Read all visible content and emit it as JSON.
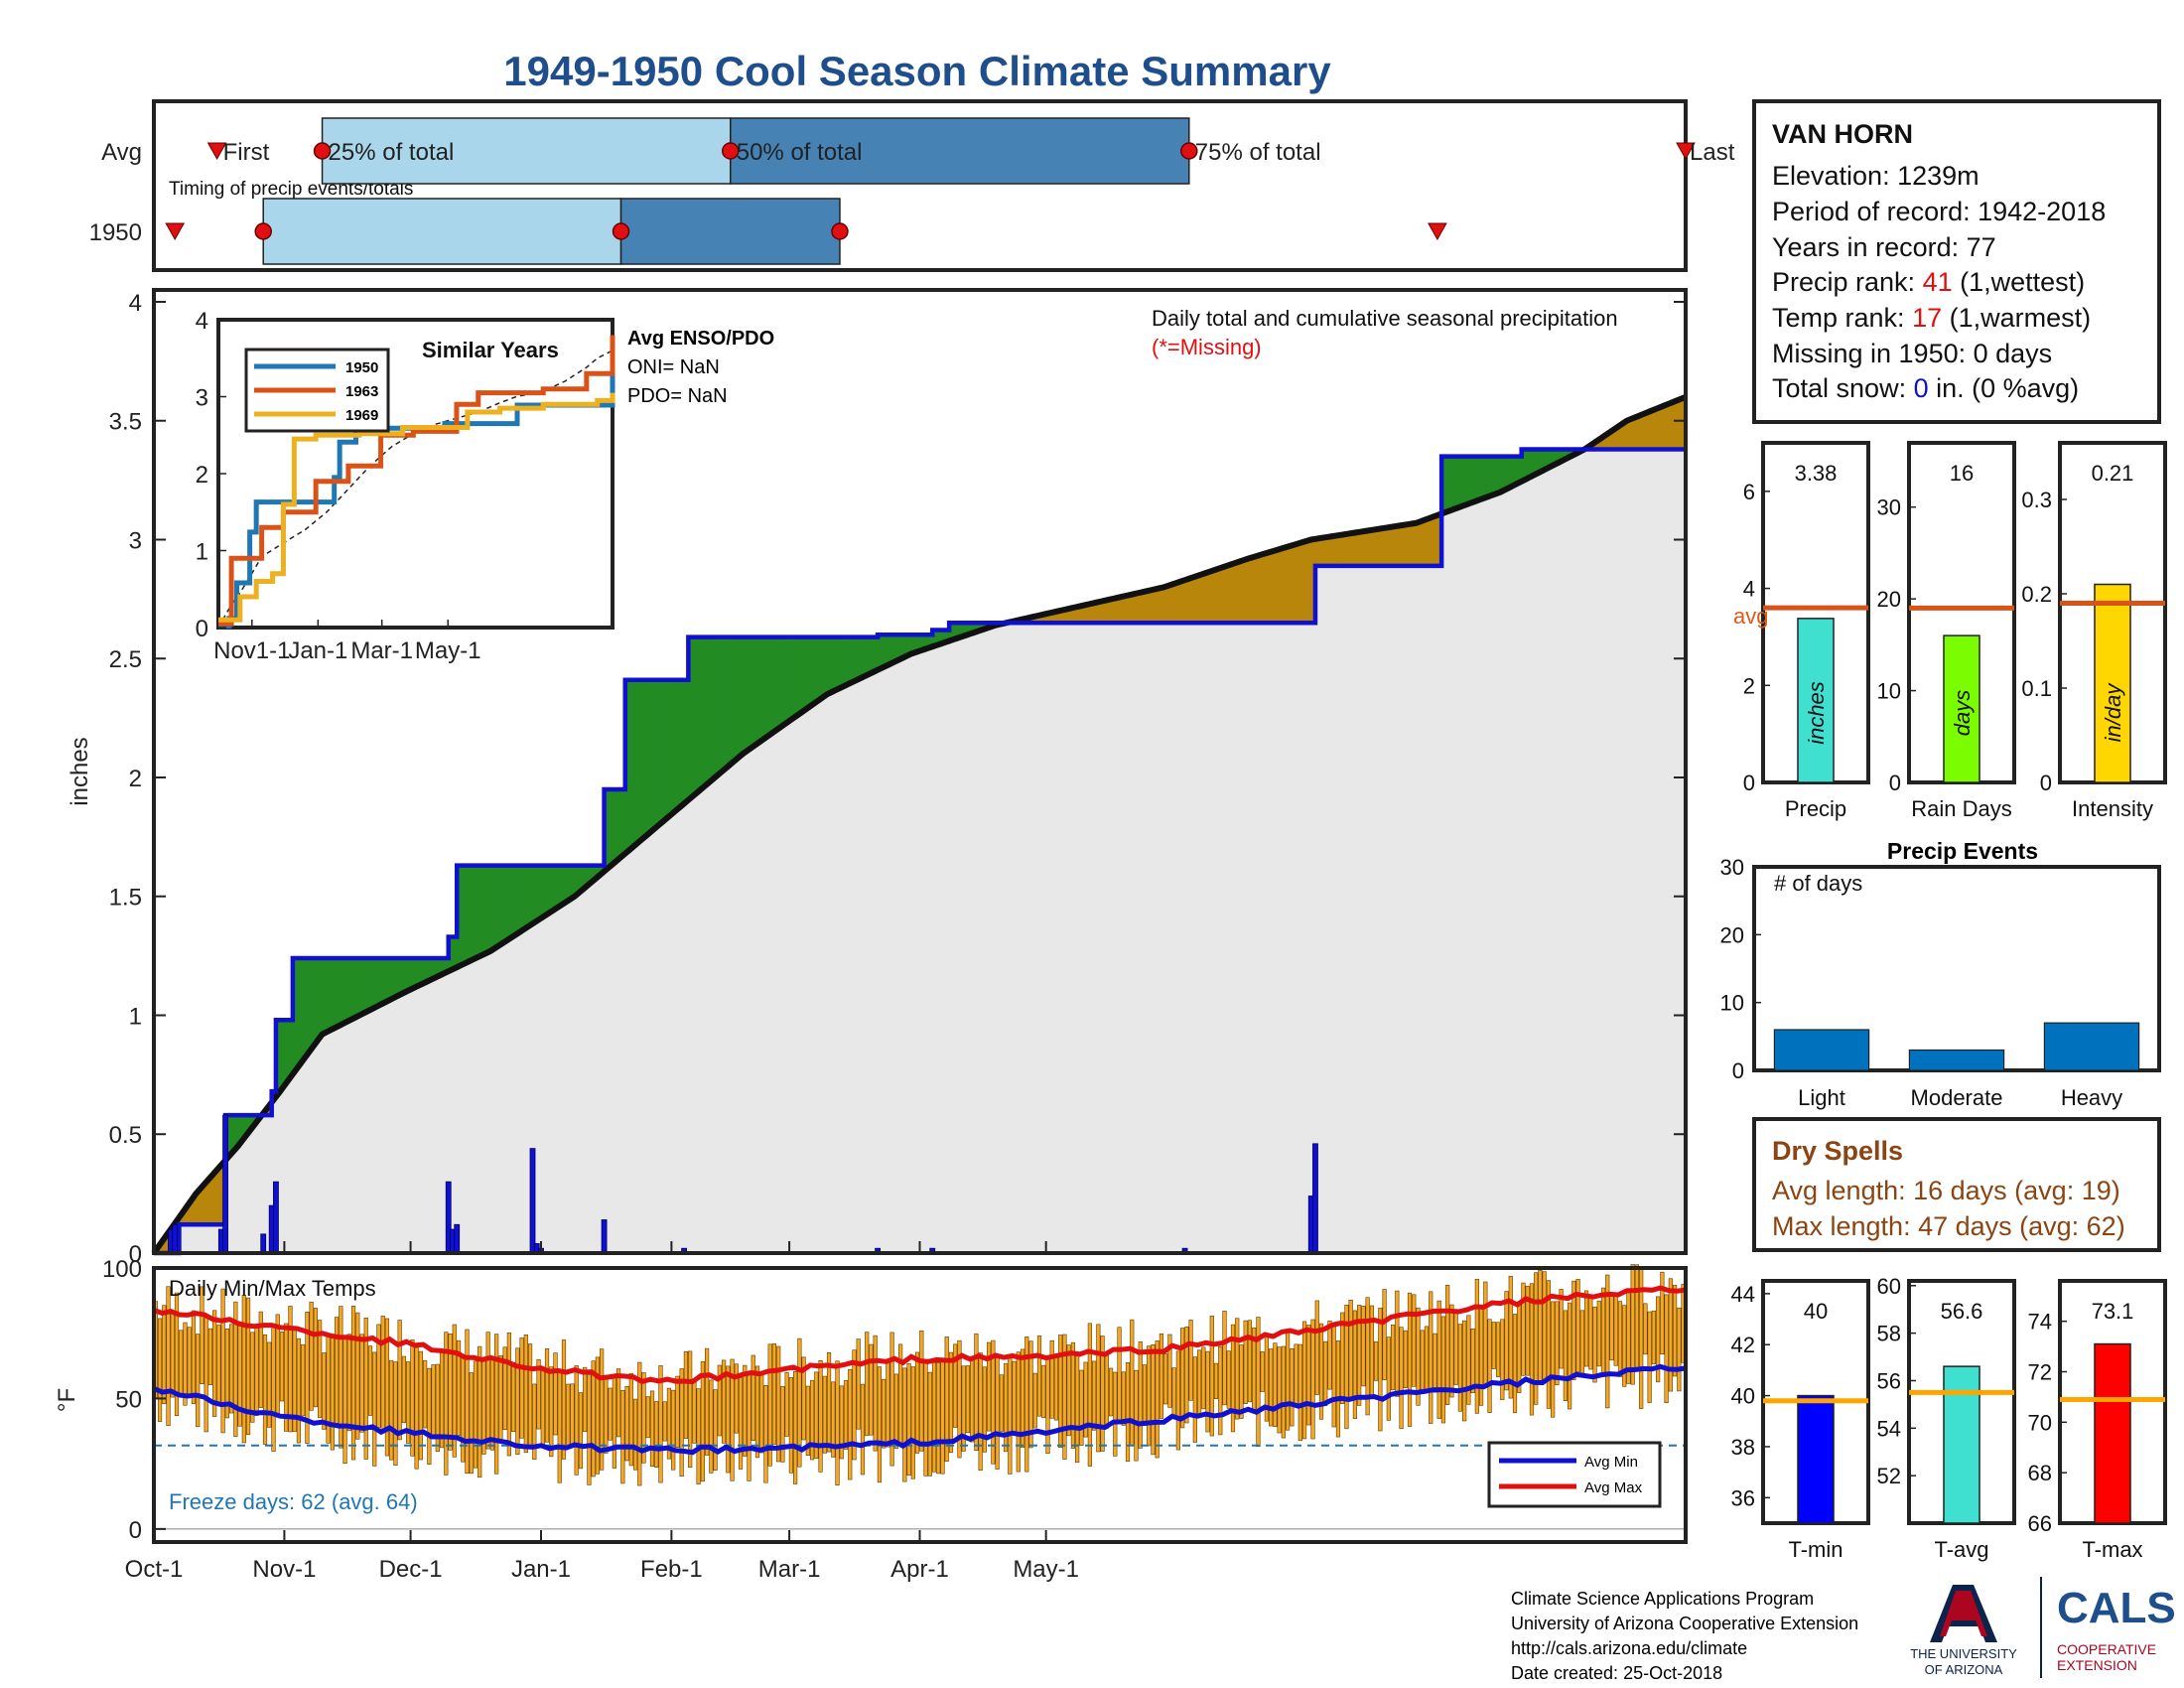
{
  "title": "1949-1950 Cool Season Climate Summary",
  "colors": {
    "title": "#1f4e8c",
    "green": "#228b22",
    "brown": "#b8860b",
    "blue": "#1010d0",
    "fill": "#e8e8e8",
    "orange": "#f5a623",
    "red": "#e01010",
    "lightblue": "#a9d6ea",
    "midblue": "#4682b4",
    "accent": "#e05a1b"
  },
  "timing": {
    "ylabels": [
      "Avg",
      "1950"
    ],
    "subtitle": "Timing of precip events/totals",
    "first": "First",
    "last": "Last",
    "p25": "25% of total",
    "p50": "50% of total",
    "p75": "75% of total",
    "avg_days": {
      "first": 15,
      "p25": 40,
      "p50": 137,
      "p75": 246,
      "last": 364
    },
    "y1950_days": {
      "first": 5,
      "p25": 26,
      "p50": 111,
      "p75": 163,
      "last": 305
    }
  },
  "station": {
    "name": "VAN HORN",
    "elevation": "Elevation: 1239m",
    "period": "Period of record: 1942-2018",
    "years": "Years in record: 77",
    "precip_rank_pre": "Precip rank: ",
    "precip_rank_val": "41",
    "precip_rank_post": " (1,wettest)",
    "temp_rank_pre": "Temp rank: ",
    "temp_rank_val": "17",
    "temp_rank_post": " (1,warmest)",
    "missing": "Missing in 1950: 0 days",
    "snow_pre": "Total snow: ",
    "snow_val": "0",
    "snow_post": " in. (0 %avg)"
  },
  "main_chart": {
    "ylabel": "inches",
    "annotation": "Daily total and cumulative seasonal precipitation",
    "missing_note": "(*=Missing)",
    "yticks": [
      "0",
      "0.5",
      "1",
      "1.5",
      "2",
      "2.5",
      "3",
      "3.5",
      "4"
    ],
    "xticks": [
      "Oct-1",
      "Nov-1",
      "Dec-1",
      "Jan-1",
      "Feb-1",
      "Mar-1",
      "Apr-1",
      "May-1"
    ]
  },
  "chart_data": [
    {
      "type": "line",
      "title": "Daily total and cumulative seasonal precipitation",
      "ylabel": "inches",
      "ylim": [
        0,
        4.05
      ],
      "x_unit": "day of season (Oct-1 = 0)",
      "series": [
        {
          "name": "1950 cumulative",
          "x": [
            0,
            4,
            6,
            10,
            16,
            17,
            26,
            28,
            29,
            33,
            35,
            70,
            72,
            90,
            91,
            92,
            104,
            107,
            111,
            112,
            126,
            127,
            140,
            172,
            185,
            189,
            209,
            276,
            306,
            325,
            351,
            364
          ],
          "y": [
            0,
            0,
            0.12,
            0.12,
            0.12,
            0.58,
            0.58,
            0.68,
            0.98,
            1.24,
            1.24,
            1.33,
            1.63,
            1.63,
            1.63,
            1.63,
            1.63,
            1.95,
            1.95,
            2.41,
            2.41,
            2.59,
            2.59,
            2.6,
            2.62,
            2.65,
            2.65,
            2.89,
            3.35,
            3.38,
            3.38,
            3.38
          ]
        },
        {
          "name": "average cumulative",
          "x": [
            0,
            10,
            20,
            30,
            40,
            60,
            80,
            100,
            120,
            140,
            160,
            180,
            200,
            220,
            240,
            250,
            260,
            275,
            300,
            320,
            340,
            350,
            364
          ],
          "y": [
            0,
            0.25,
            0.45,
            0.68,
            0.92,
            1.1,
            1.27,
            1.5,
            1.8,
            2.1,
            2.35,
            2.52,
            2.64,
            2.72,
            2.8,
            2.86,
            2.92,
            3.0,
            3.07,
            3.2,
            3.38,
            3.5,
            3.6
          ]
        },
        {
          "name": "daily totals",
          "x": [
            4,
            5,
            16,
            17,
            26,
            28,
            29,
            70,
            71,
            72,
            90,
            91,
            92,
            107,
            126,
            172,
            185,
            245,
            275,
            276
          ],
          "y": [
            0.1,
            0.12,
            0.1,
            0.58,
            0.08,
            0.2,
            0.3,
            0.3,
            0.1,
            0.12,
            0.44,
            0.04,
            0.02,
            0.14,
            0.02,
            0.02,
            0.02,
            0.02,
            0.24,
            0.46
          ]
        }
      ]
    },
    {
      "type": "line",
      "title": "Similar Years",
      "ylim": [
        0,
        4
      ],
      "xticks": [
        "Nov1-1",
        "Jan-1",
        "Mar-1",
        "May-1"
      ],
      "series": [
        {
          "name": "1950",
          "color": "#1f77b4",
          "x": [
            0,
            10,
            17,
            29,
            35,
            70,
            107,
            112,
            127,
            209,
            276,
            364
          ],
          "y": [
            0.02,
            0.12,
            0.58,
            1.24,
            1.63,
            1.63,
            1.95,
            2.41,
            2.59,
            2.65,
            2.89,
            3.38
          ]
        },
        {
          "name": "1963",
          "color": "#d95319",
          "x": [
            0,
            12,
            22,
            40,
            60,
            90,
            120,
            150,
            180,
            220,
            240,
            300,
            340,
            364
          ],
          "y": [
            0.05,
            0.9,
            0.9,
            1.3,
            1.5,
            1.9,
            2.1,
            2.5,
            2.55,
            2.9,
            3.05,
            3.1,
            3.3,
            3.8
          ]
        },
        {
          "name": "1969",
          "color": "#edb120",
          "x": [
            0,
            20,
            35,
            50,
            60,
            70,
            90,
            130,
            170,
            230,
            260,
            300,
            350,
            364
          ],
          "y": [
            0.1,
            0.4,
            0.6,
            0.7,
            1.6,
            2.45,
            2.5,
            2.52,
            2.6,
            2.8,
            2.85,
            2.9,
            2.95,
            3.05
          ]
        }
      ],
      "avg_label": "Avg ENSO/PDO",
      "oni": "ONI= NaN",
      "pdo": "PDO= NaN"
    },
    {
      "type": "bar",
      "categories": [
        "Precip",
        "Rain Days",
        "Intensity"
      ],
      "values": [
        3.38,
        16,
        0.21
      ],
      "avg": [
        3.6,
        19,
        0.19
      ],
      "units": [
        "inches",
        "days",
        "in/day"
      ],
      "ylims": [
        [
          0,
          7
        ],
        [
          0,
          37
        ],
        [
          0,
          0.36
        ]
      ]
    },
    {
      "type": "bar",
      "title": "Precip Events",
      "ylabel": "# of days",
      "categories": [
        "Light",
        "Moderate",
        "Heavy"
      ],
      "values": [
        6,
        3,
        7
      ],
      "ylim": [
        0,
        30
      ]
    },
    {
      "type": "line",
      "title": "Daily Min/Max Temps",
      "ylabel": "°F",
      "ylim": [
        -5,
        100
      ],
      "freeze_line": 32,
      "series": [
        {
          "name": "Avg Min",
          "x": [
            0,
            30,
            60,
            90,
            120,
            150,
            180,
            210,
            240,
            270,
            300,
            330,
            364
          ],
          "y": [
            54,
            43,
            37,
            32,
            30,
            31,
            33,
            37,
            42,
            47,
            52,
            57,
            62
          ]
        },
        {
          "name": "Avg Max",
          "x": [
            0,
            30,
            60,
            90,
            120,
            150,
            180,
            210,
            240,
            270,
            300,
            330,
            364
          ],
          "y": [
            84,
            77,
            71,
            62,
            56,
            61,
            65,
            66,
            69,
            75,
            82,
            88,
            92
          ]
        }
      ]
    },
    {
      "type": "bar",
      "categories": [
        "T-min",
        "T-avg",
        "T-max"
      ],
      "values": [
        40,
        56.6,
        73.1
      ],
      "avg": [
        39.8,
        55.5,
        70.9
      ]
    }
  ],
  "summary_bars": {
    "precip_val": "3.38",
    "raindays_val": "16",
    "intensity_val": "0.21",
    "avg_text": "avg",
    "precip_label": "Precip",
    "raindays_label": "Rain Days",
    "intensity_label": "Intensity",
    "precip_unit": "inches",
    "raindays_unit": "days",
    "intensity_unit": "in/day",
    "precip_ticks": [
      "0",
      "2",
      "4",
      "6"
    ],
    "raindays_ticks": [
      "0",
      "10",
      "20",
      "30"
    ],
    "intensity_ticks": [
      "0",
      "0.1",
      "0.2",
      "0.3"
    ]
  },
  "events": {
    "title": "Precip Events",
    "ylabel": "# of days",
    "labels": [
      "Light",
      "Moderate",
      "Heavy"
    ],
    "yticks": [
      "0",
      "10",
      "20",
      "30"
    ]
  },
  "dry_spells": {
    "title": "Dry Spells",
    "avg": "Avg length: 16 days (avg: 19)",
    "max": "Max length: 47 days (avg: 62)"
  },
  "temps": {
    "title": "Daily Min/Max Temps",
    "ylabel": "°F",
    "yticks": [
      "0",
      "50",
      "100"
    ],
    "freeze": "Freeze days: 62 (avg. 64)",
    "legend_min": "Avg Min",
    "legend_max": "Avg Max"
  },
  "temp_bars": {
    "tmin_val": "40",
    "tavg_val": "56.6",
    "tmax_val": "73.1",
    "tmin_label": "T-min",
    "tavg_label": "T-avg",
    "tmax_label": "T-max",
    "tmin_ticks": [
      "36",
      "38",
      "40",
      "42",
      "44"
    ],
    "tavg_ticks": [
      "52",
      "54",
      "56",
      "58",
      "60"
    ],
    "tmax_ticks": [
      "66",
      "68",
      "70",
      "72",
      "74"
    ]
  },
  "footer": {
    "line1": "Climate Science Applications Program",
    "line2": "University of Arizona Cooperative Extension",
    "line3": "http://cals.arizona.edu/climate",
    "line4": " Date created: 25-Oct-2018",
    "ua_top": "THE UNIVERSITY",
    "ua_bot": "OF ARIZONA",
    "cals": "CALS",
    "coop1": "COOPERATIVE",
    "coop2": "EXTENSION"
  }
}
